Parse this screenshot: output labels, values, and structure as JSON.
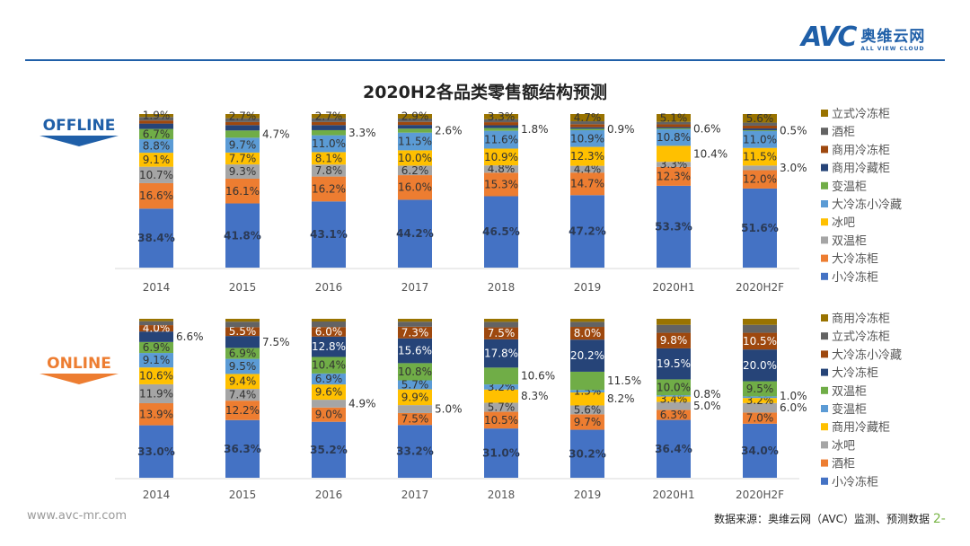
{
  "header": {
    "logo_text": "AVC",
    "logo_cn": "奥维云网",
    "logo_en": "ALL VIEW CLOUD",
    "title": "2020H2各品类零售额结构预测"
  },
  "footer": {
    "website": "www.avc-mr.com",
    "source": "数据来源：奥维云网（AVC）监测、预测数据",
    "page": "2-"
  },
  "chart_data": [
    {
      "type": "bar",
      "stacked": true,
      "percent": true,
      "badge": "OFFLINE",
      "badge_color": "#1f5fa8",
      "legend_position": "right",
      "categories": [
        "2014",
        "2015",
        "2016",
        "2017",
        "2018",
        "2019",
        "2020H1",
        "2020H2F"
      ],
      "series": [
        {
          "name": "小冷冻柜",
          "color": "#4472c4",
          "values": [
            38.4,
            41.8,
            43.1,
            44.2,
            46.5,
            47.2,
            53.3,
            51.6
          ]
        },
        {
          "name": "大冷冻柜",
          "color": "#ed7d31",
          "values": [
            16.6,
            16.1,
            16.2,
            16.0,
            15.3,
            14.7,
            12.3,
            12.0
          ]
        },
        {
          "name": "双温柜",
          "color": "#a5a5a5",
          "values": [
            10.7,
            9.3,
            7.8,
            6.2,
            4.8,
            4.4,
            3.3,
            3.0
          ]
        },
        {
          "name": "冰吧",
          "color": "#ffc000",
          "values": [
            9.1,
            7.7,
            8.1,
            10.0,
            10.9,
            12.3,
            10.4,
            11.5
          ]
        },
        {
          "name": "大冷冻小冷藏",
          "color": "#5b9bd5",
          "values": [
            8.8,
            9.7,
            11.0,
            11.5,
            11.6,
            10.9,
            10.8,
            11.0
          ]
        },
        {
          "name": "变温柜",
          "color": "#70ad47",
          "values": [
            6.7,
            4.7,
            3.3,
            2.6,
            1.8,
            0.9,
            0.6,
            0.5
          ]
        },
        {
          "name": "商用冷藏柜",
          "color": "#264478",
          "values": [
            3.5,
            3.5,
            3.3,
            2.4,
            1.8,
            1.0,
            0.8,
            1.2
          ]
        },
        {
          "name": "商用冷冻柜",
          "color": "#9e480e",
          "values": [
            2.0,
            2.0,
            2.0,
            2.0,
            2.0,
            2.0,
            1.8,
            1.8
          ]
        },
        {
          "name": "酒柜",
          "color": "#636363",
          "values": [
            2.3,
            2.5,
            2.5,
            2.2,
            2.0,
            1.9,
            1.6,
            2.0
          ]
        },
        {
          "name": "立式冷冻柜",
          "color": "#997300",
          "values": [
            1.9,
            2.7,
            2.7,
            2.9,
            3.3,
            4.7,
            5.1,
            5.6
          ]
        }
      ],
      "legend_order": [
        "立式冷冻柜",
        "酒柜",
        "商用冷冻柜",
        "商用冷藏柜",
        "变温柜",
        "大冷冻小冷藏",
        "冰吧",
        "双温柜",
        "大冷冻柜",
        "小冷冻柜"
      ]
    },
    {
      "type": "bar",
      "stacked": true,
      "percent": true,
      "badge": "ONLINE",
      "badge_color": "#ed7d31",
      "legend_position": "right",
      "categories": [
        "2014",
        "2015",
        "2016",
        "2017",
        "2018",
        "2019",
        "2020H1",
        "2020H2F"
      ],
      "series": [
        {
          "name": "小冷冻柜",
          "color": "#4472c4",
          "values": [
            33.0,
            36.3,
            35.2,
            33.2,
            31.0,
            30.2,
            36.4,
            34.0
          ]
        },
        {
          "name": "酒柜",
          "color": "#ed7d31",
          "values": [
            13.9,
            12.2,
            9.0,
            7.5,
            10.5,
            9.7,
            6.3,
            7.0
          ]
        },
        {
          "name": "冰吧",
          "color": "#a5a5a5",
          "values": [
            11.9,
            7.4,
            4.9,
            5.0,
            5.7,
            5.6,
            5.0,
            6.0
          ]
        },
        {
          "name": "商用冷藏柜",
          "color": "#ffc000",
          "values": [
            10.6,
            9.4,
            9.6,
            9.9,
            8.3,
            8.2,
            3.4,
            3.2
          ]
        },
        {
          "name": "变温柜",
          "color": "#5b9bd5",
          "values": [
            9.1,
            9.5,
            6.9,
            5.7,
            3.2,
            1.5,
            0.8,
            1.0
          ]
        },
        {
          "name": "双温柜",
          "color": "#70ad47",
          "values": [
            6.9,
            6.9,
            10.4,
            10.8,
            10.6,
            11.5,
            10.0,
            9.5
          ]
        },
        {
          "name": "大冷冻柜",
          "color": "#264478",
          "values": [
            6.6,
            7.5,
            12.8,
            15.6,
            17.8,
            20.2,
            19.5,
            20.0
          ]
        },
        {
          "name": "大冷冻小冷藏",
          "color": "#9e480e",
          "values": [
            4.0,
            5.5,
            6.0,
            7.3,
            7.5,
            8.0,
            9.8,
            10.5
          ]
        },
        {
          "name": "立式冷冻柜",
          "color": "#636363",
          "values": [
            2.5,
            3.5,
            3.5,
            3.2,
            3.5,
            3.2,
            5.0,
            5.0
          ]
        },
        {
          "name": "商用冷冻柜",
          "color": "#997300",
          "values": [
            1.5,
            1.8,
            1.7,
            1.8,
            1.9,
            1.9,
            3.8,
            3.8
          ]
        }
      ],
      "legend_order": [
        "商用冷冻柜",
        "立式冷冻柜",
        "大冷冻小冷藏",
        "大冷冻柜",
        "双温柜",
        "变温柜",
        "商用冷藏柜",
        "冰吧",
        "酒柜",
        "小冷冻柜"
      ]
    }
  ]
}
